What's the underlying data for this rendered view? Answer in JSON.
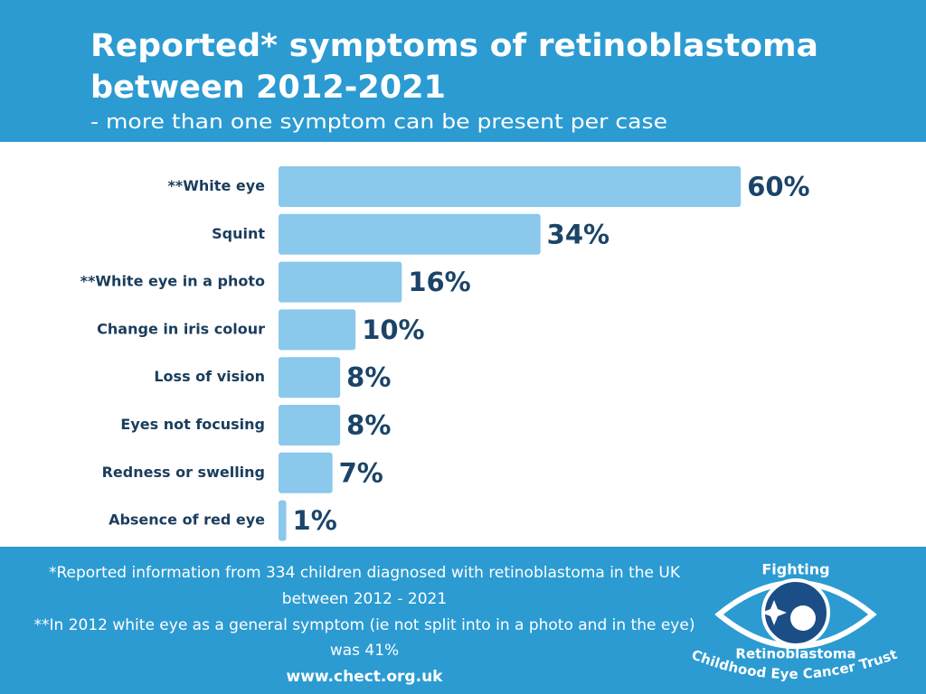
{
  "chart_data": {
    "type": "bar",
    "orientation": "horizontal",
    "title": [
      "Reported* symptoms of retinoblastoma",
      "between 2012-2021"
    ],
    "subtitle": "- more than one symptom can be present per case",
    "categories": [
      "**White eye",
      "Squint",
      "**White eye in a photo",
      "Change in iris colour",
      "Loss of vision",
      "Eyes not focusing",
      "Redness or swelling",
      "Absence of red eye"
    ],
    "values": [
      60,
      34,
      16,
      10,
      8,
      8,
      7,
      1
    ],
    "value_labels": [
      "60%",
      "34%",
      "16%",
      "10%",
      "8%",
      "8%",
      "7%",
      "1%"
    ],
    "color": "#8ac8ec"
  },
  "footer": {
    "notes": [
      "*Reported  information from 334 children diagnosed with retinoblastoma in the UK",
      "between 2012 - 2021",
      "**In 2012 white eye as a general symptom (ie not split into in a photo and in the eye)",
      "was 41%"
    ],
    "url": "www.chect.org.uk"
  },
  "logo": {
    "top": "Fighting",
    "middle": "Retinoblastoma",
    "bottom": "Childhood Eye Cancer Trust"
  }
}
